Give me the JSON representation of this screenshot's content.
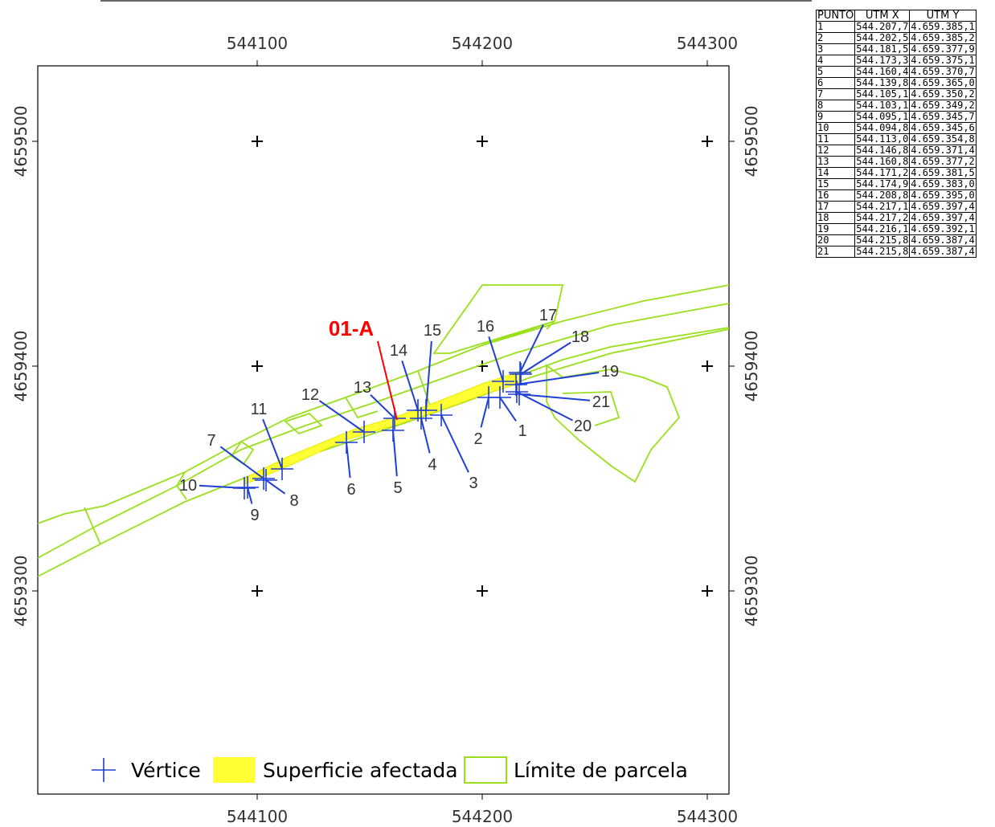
{
  "map": {
    "x_ticks": [
      "544100",
      "544200",
      "544300"
    ],
    "y_ticks": [
      "4659500",
      "4659400",
      "4659300"
    ],
    "parcel_id": "01-A",
    "colors": {
      "vertex": "#1f3fd6",
      "leader": "#1f3fd6",
      "affected_area": "#ffff33",
      "parcel_boundary": "#99e01a",
      "parcel_id": "#ff0000",
      "frame": "#000000"
    },
    "vertex_labels": [
      "1",
      "2",
      "3",
      "4",
      "5",
      "6",
      "7",
      "8",
      "9",
      "10",
      "11",
      "12",
      "13",
      "14",
      "15",
      "16",
      "17",
      "18",
      "19",
      "20",
      "21"
    ]
  },
  "legend": {
    "vertex": "Vértice",
    "affected_area": "Superficie afectada",
    "parcel_boundary": "Límite de parcela"
  },
  "table": {
    "headers": [
      "PUNTO",
      "UTM X",
      "UTM Y"
    ],
    "rows": [
      [
        "1",
        "544.207,7",
        "4.659.385,1"
      ],
      [
        "2",
        "544.202,5",
        "4.659.385,2"
      ],
      [
        "3",
        "544.181,5",
        "4.659.377,9"
      ],
      [
        "4",
        "544.173,3",
        "4.659.375,1"
      ],
      [
        "5",
        "544.160,4",
        "4.659.370,7"
      ],
      [
        "6",
        "544.139,8",
        "4.659.365,0"
      ],
      [
        "7",
        "544.105,1",
        "4.659.350,2"
      ],
      [
        "8",
        "544.103,1",
        "4.659.349,2"
      ],
      [
        "9",
        "544.095,1",
        "4.659.345,7"
      ],
      [
        "10",
        "544.094,8",
        "4.659.345,6"
      ],
      [
        "11",
        "544.113,0",
        "4.659.354,8"
      ],
      [
        "12",
        "544.146,8",
        "4.659.371,4"
      ],
      [
        "13",
        "544.160,8",
        "4.659.377,2"
      ],
      [
        "14",
        "544.171,2",
        "4.659.381,5"
      ],
      [
        "15",
        "544.174,9",
        "4.659.383,0"
      ],
      [
        "16",
        "544.208,8",
        "4.659.395,0"
      ],
      [
        "17",
        "544.217,1",
        "4.659.397,4"
      ],
      [
        "18",
        "544.217,2",
        "4.659.397,4"
      ],
      [
        "19",
        "544.216,1",
        "4.659.392,1"
      ],
      [
        "20",
        "544.215,8",
        "4.659.387,4"
      ],
      [
        "21",
        "544.215,8",
        "4.659.387,4"
      ]
    ]
  }
}
